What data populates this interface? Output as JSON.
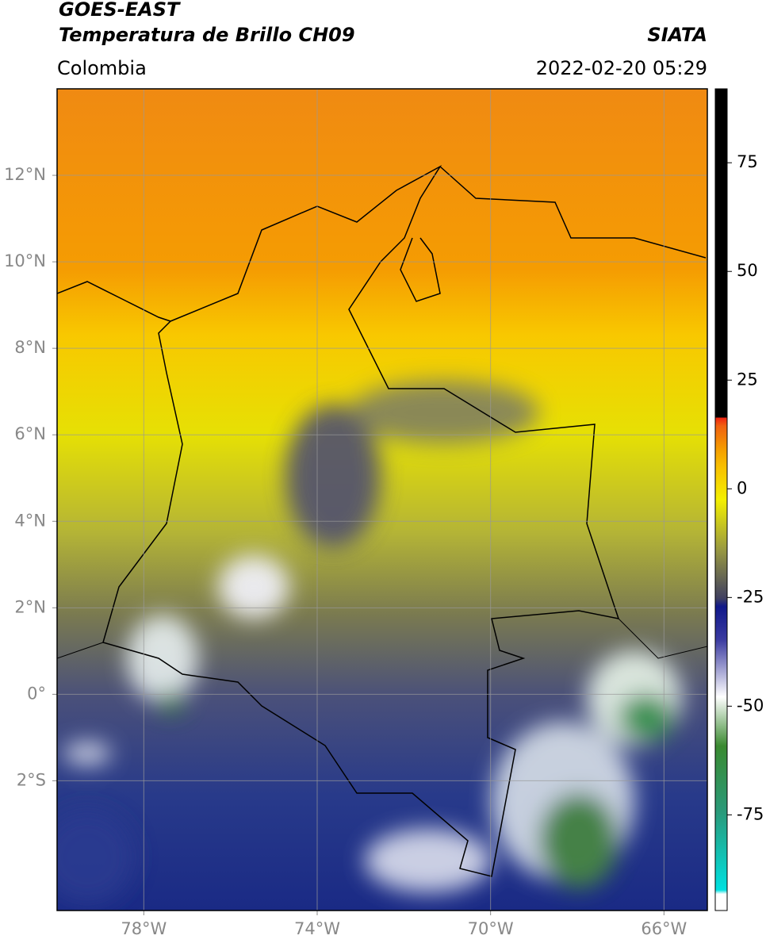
{
  "map": {
    "title": "GOES-EAST",
    "subtitle": "Temperatura de Brillo CH09",
    "source": "SIATA",
    "region": "Colombia",
    "datetime": "2022-02-20 05:29",
    "xlim": [
      -80,
      -65
    ],
    "ylim": [
      -5,
      14
    ],
    "xticks": [
      {
        "value": -78,
        "label": "78°W"
      },
      {
        "value": -74,
        "label": "74°W"
      },
      {
        "value": -70,
        "label": "70°W"
      },
      {
        "value": -66,
        "label": "66°W"
      }
    ],
    "yticks": [
      {
        "value": -2,
        "label": "2°S"
      },
      {
        "value": 0,
        "label": "0°"
      },
      {
        "value": 2,
        "label": "2°N"
      },
      {
        "value": 4,
        "label": "4°N"
      },
      {
        "value": 6,
        "label": "6°N"
      },
      {
        "value": 8,
        "label": "8°N"
      },
      {
        "value": 10,
        "label": "10°N"
      },
      {
        "value": 12,
        "label": "12°N"
      }
    ],
    "grid": true,
    "colorbar": {
      "lim": [
        -97,
        92
      ],
      "ticks": [
        75,
        50,
        25,
        0,
        -25,
        -50,
        -75
      ]
    }
  }
}
